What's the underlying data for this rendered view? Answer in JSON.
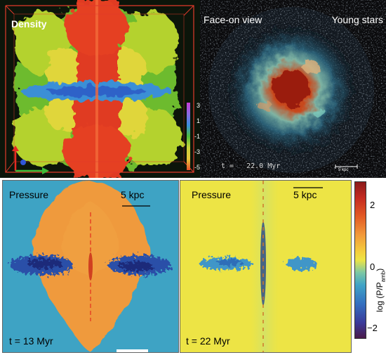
{
  "panels": {
    "density": {
      "label": "Density",
      "scale": {
        "ticks": [
          "3",
          "1",
          "-1",
          "-3",
          "-5"
        ]
      }
    },
    "faceon": {
      "title": "Face-on view",
      "label": "Young stars",
      "time": "t =   22.0 Myr",
      "scalebar": "5 kpc"
    },
    "pressure_left": {
      "label": "Pressure",
      "scalebar": "5 kpc",
      "time": "t = 13 Myr"
    },
    "pressure_right": {
      "label": "Pressure",
      "scalebar": "5 kpc",
      "time": "t = 22 Myr"
    }
  },
  "colorbar": {
    "label": "log (P/P",
    "label_sub": "amb",
    "label_close": ")",
    "ticks": [
      "2",
      "0",
      "−2"
    ]
  },
  "colors": {
    "pressure_bg_left": "#3ea3c4",
    "pressure_bg_right": "#ede445",
    "bubble": "#ef9a3c",
    "density_bg": "#0c150a"
  }
}
